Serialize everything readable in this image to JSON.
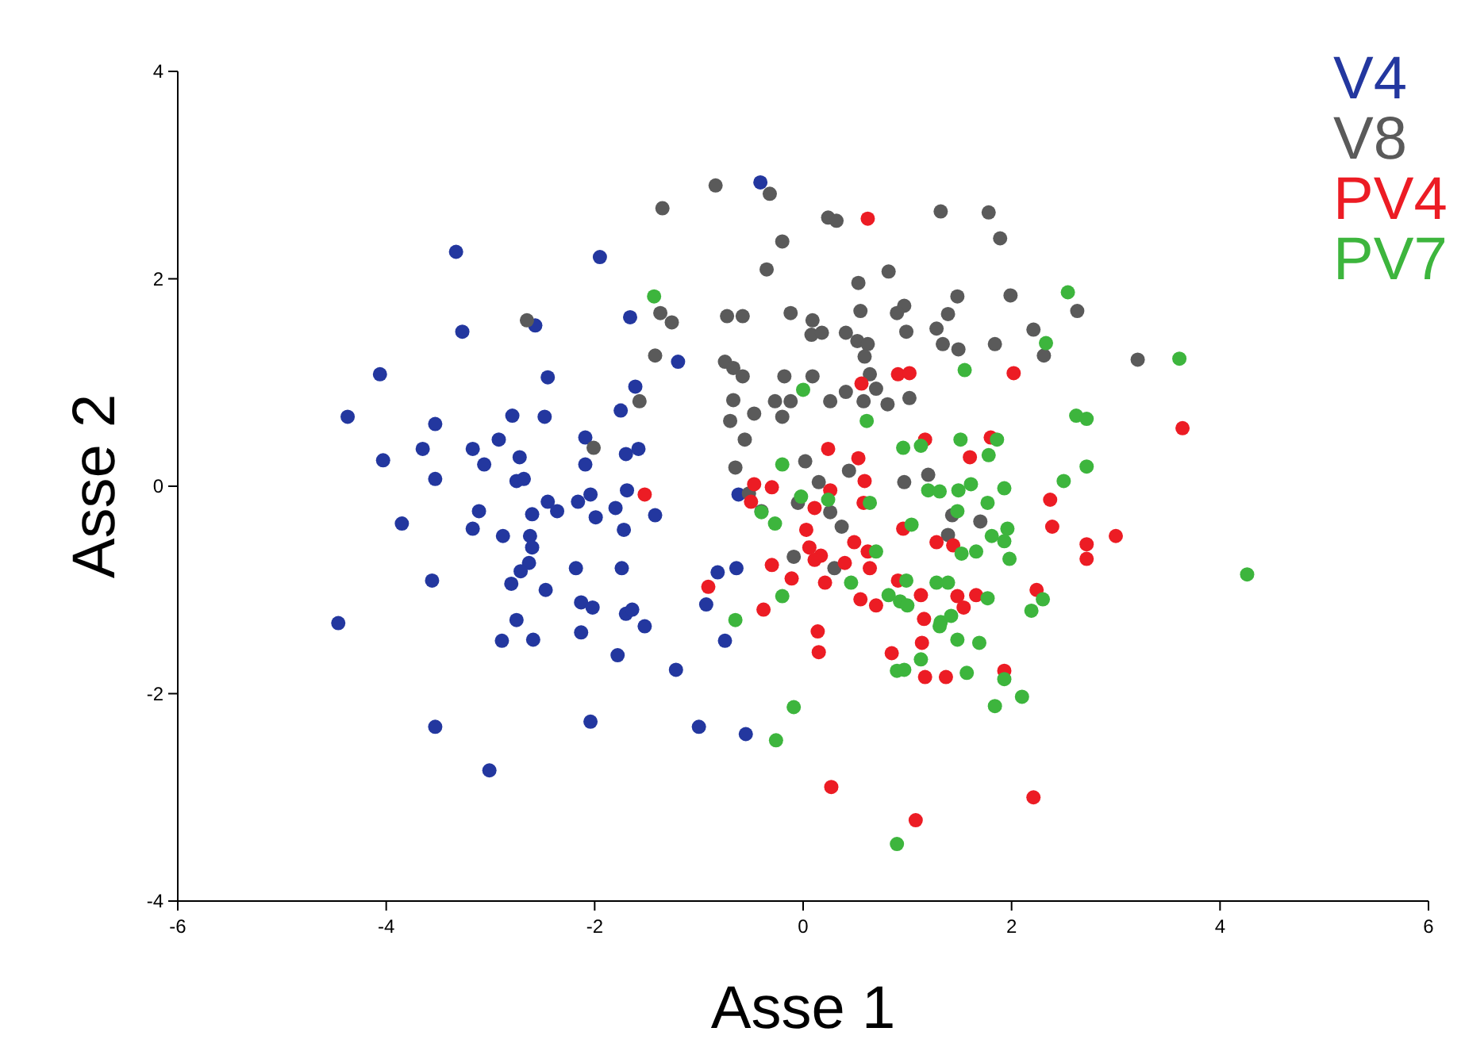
{
  "chart_data": {
    "type": "scatter",
    "xlabel": "Asse 1",
    "ylabel": "Asse 2",
    "xlim": [
      -6,
      6
    ],
    "ylim": [
      -4,
      4
    ],
    "xticks": [
      -6,
      -4,
      -2,
      0,
      2,
      4,
      6
    ],
    "yticks": [
      -4,
      -2,
      0,
      2,
      4
    ],
    "legend": "top right",
    "marker": "circle",
    "grid": false,
    "series": [
      {
        "name": "V4",
        "color": "#23379f",
        "x": [
          -3.33,
          -1.95,
          -3.27,
          -2.57,
          -1.66,
          -1.2,
          -4.06,
          -2.45,
          -1.61,
          -4.37,
          -3.53,
          -2.79,
          -2.48,
          -1.75,
          -2.09,
          -3.65,
          -3.17,
          -2.92,
          -4.03,
          -3.06,
          -2.72,
          -2.09,
          -1.7,
          -1.58,
          -3.53,
          -2.75,
          -2.68,
          -1.69,
          -2.45,
          -2.36,
          -2.16,
          -2.04,
          -1.8,
          -1.42,
          -1.99,
          -3.11,
          -2.6,
          -3.85,
          -3.17,
          -2.88,
          -1.72,
          -2.62,
          -2.6,
          -2.63,
          -2.71,
          -2.8,
          -2.47,
          -3.56,
          -2.18,
          -1.74,
          -2.13,
          -2.02,
          -1.7,
          -1.64,
          -1.52,
          -4.46,
          -2.75,
          -2.89,
          -2.59,
          -2.13,
          -1.78,
          -1.22,
          -3.53,
          -2.04,
          -1.0,
          -3.01,
          -0.93,
          -0.82,
          -0.64,
          -0.75,
          -0.55,
          -0.62,
          -0.41
        ],
        "values": [
          2.26,
          2.21,
          1.49,
          1.55,
          1.63,
          1.2,
          1.08,
          1.05,
          0.96,
          0.67,
          0.6,
          0.68,
          0.67,
          0.73,
          0.47,
          0.36,
          0.36,
          0.45,
          0.25,
          0.21,
          0.28,
          0.21,
          0.31,
          0.36,
          0.07,
          0.05,
          0.07,
          -0.04,
          -0.15,
          -0.24,
          -0.15,
          -0.08,
          -0.21,
          -0.28,
          -0.3,
          -0.24,
          -0.27,
          -0.36,
          -0.41,
          -0.48,
          -0.42,
          -0.48,
          -0.59,
          -0.74,
          -0.82,
          -0.94,
          -1.0,
          -0.91,
          -0.79,
          -0.79,
          -1.12,
          -1.17,
          -1.23,
          -1.19,
          -1.35,
          -1.32,
          -1.29,
          -1.49,
          -1.48,
          -1.41,
          -1.63,
          -1.77,
          -2.32,
          -2.27,
          -2.32,
          -2.74,
          -1.14,
          -0.83,
          -0.79,
          -1.49,
          -2.39,
          -0.08,
          2.93
        ]
      },
      {
        "name": "V8",
        "color": "#5a5a5a",
        "x": [
          -0.84,
          -1.35,
          -0.32,
          0.24,
          0.32,
          1.32,
          -0.2,
          -0.35,
          0.82,
          0.53,
          1.48,
          0.97,
          0.9,
          -0.12,
          0.55,
          -0.73,
          -0.58,
          1.39,
          0.09,
          1.28,
          0.99,
          0.08,
          0.18,
          0.41,
          0.52,
          0.62,
          1.34,
          1.49,
          -1.37,
          -1.26,
          -1.42,
          0.59,
          -0.75,
          -0.67,
          -0.58,
          -0.18,
          0.09,
          0.64,
          0.41,
          0.7,
          1.02,
          0.58,
          0.81,
          0.26,
          -0.27,
          -0.12,
          -0.67,
          -1.57,
          -0.47,
          -0.2,
          -0.7,
          -0.56,
          -0.65,
          0.02,
          0.44,
          0.15,
          0.97,
          1.2,
          -2.65,
          -2.01,
          1.78,
          1.89,
          1.99,
          2.63,
          2.21,
          1.84,
          2.31,
          3.21,
          -0.52,
          -0.05,
          0.26,
          -0.4,
          0.37,
          1.43,
          1.39,
          -0.09,
          0.3,
          1.7
        ],
        "values": [
          2.9,
          2.68,
          2.82,
          2.59,
          2.56,
          2.65,
          2.36,
          2.09,
          2.07,
          1.96,
          1.83,
          1.74,
          1.67,
          1.67,
          1.69,
          1.64,
          1.64,
          1.66,
          1.6,
          1.52,
          1.49,
          1.46,
          1.48,
          1.48,
          1.4,
          1.37,
          1.37,
          1.32,
          1.67,
          1.58,
          1.26,
          1.25,
          1.2,
          1.14,
          1.06,
          1.06,
          1.06,
          1.08,
          0.91,
          0.94,
          0.85,
          0.82,
          0.79,
          0.82,
          0.82,
          0.82,
          0.83,
          0.82,
          0.7,
          0.67,
          0.63,
          0.45,
          0.18,
          0.24,
          0.15,
          0.04,
          0.04,
          0.11,
          1.6,
          0.37,
          2.64,
          2.39,
          1.84,
          1.69,
          1.51,
          1.37,
          1.26,
          1.22,
          -0.07,
          -0.16,
          -0.25,
          -0.24,
          -0.39,
          -0.28,
          -0.47,
          -0.68,
          -0.79,
          -0.34
        ]
      },
      {
        "name": "PV4",
        "color": "#ec1c24",
        "x": [
          0.62,
          0.91,
          1.02,
          0.56,
          0.24,
          0.53,
          0.59,
          1.17,
          1.6,
          -1.52,
          -0.47,
          -0.3,
          0.26,
          -0.5,
          0.11,
          0.58,
          0.03,
          0.49,
          0.06,
          0.17,
          0.11,
          0.4,
          0.62,
          0.64,
          -0.3,
          -0.11,
          0.21,
          -0.91,
          -0.38,
          0.55,
          0.7,
          0.91,
          1.13,
          0.96,
          1.28,
          1.48,
          1.54,
          1.16,
          1.14,
          0.85,
          1.17,
          1.37,
          0.14,
          0.15,
          0.27,
          1.08,
          2.37,
          2.39,
          3.0,
          2.72,
          2.72,
          1.44,
          2.24,
          1.66,
          1.93,
          2.21,
          2.02,
          1.8,
          3.64
        ],
        "values": [
          2.58,
          1.08,
          1.09,
          0.99,
          0.36,
          0.27,
          0.05,
          0.45,
          0.28,
          -0.08,
          0.02,
          -0.01,
          -0.04,
          -0.15,
          -0.21,
          -0.16,
          -0.42,
          -0.54,
          -0.59,
          -0.67,
          -0.71,
          -0.74,
          -0.63,
          -0.79,
          -0.76,
          -0.89,
          -0.93,
          -0.97,
          -1.19,
          -1.09,
          -1.15,
          -0.91,
          -1.05,
          -0.41,
          -0.54,
          -1.06,
          -1.17,
          -1.28,
          -1.51,
          -1.61,
          -1.84,
          -1.84,
          -1.4,
          -1.6,
          -2.9,
          -3.22,
          -0.13,
          -0.39,
          -0.48,
          -0.56,
          -0.7,
          -0.57,
          -1.0,
          -1.05,
          -1.78,
          -3.0,
          1.09,
          0.47,
          0.56
        ]
      },
      {
        "name": "PV7",
        "color": "#3db53d",
        "x": [
          -1.43,
          1.55,
          0.0,
          0.61,
          0.96,
          1.13,
          1.51,
          -0.2,
          1.2,
          1.31,
          1.49,
          -0.02,
          0.24,
          0.64,
          -0.4,
          -0.27,
          1.04,
          1.52,
          0.7,
          0.46,
          0.99,
          1.28,
          1.39,
          0.82,
          0.93,
          1.0,
          1.32,
          1.42,
          1.31,
          1.48,
          1.69,
          -0.2,
          -0.65,
          1.13,
          0.9,
          0.97,
          1.57,
          -0.09,
          -0.26,
          0.9,
          1.78,
          2.72,
          2.5,
          1.61,
          1.93,
          1.77,
          1.48,
          1.96,
          1.81,
          1.93,
          1.66,
          1.98,
          1.77,
          2.3,
          2.19,
          1.93,
          2.1,
          1.84,
          4.26,
          2.54,
          2.33,
          3.61,
          2.62,
          2.72,
          1.86
        ],
        "values": [
          1.83,
          1.12,
          0.93,
          0.63,
          0.37,
          0.39,
          0.45,
          0.21,
          -0.04,
          -0.05,
          -0.04,
          -0.1,
          -0.13,
          -0.16,
          -0.25,
          -0.36,
          -0.37,
          -0.65,
          -0.63,
          -0.93,
          -0.91,
          -0.93,
          -0.93,
          -1.05,
          -1.11,
          -1.15,
          -1.31,
          -1.25,
          -1.35,
          -1.48,
          -1.51,
          -1.06,
          -1.29,
          -1.67,
          -1.78,
          -1.77,
          -1.8,
          -2.13,
          -2.45,
          -3.45,
          0.3,
          0.19,
          0.05,
          0.02,
          -0.02,
          -0.16,
          -0.24,
          -0.41,
          -0.48,
          -0.53,
          -0.63,
          -0.7,
          -1.08,
          -1.09,
          -1.2,
          -1.86,
          -2.03,
          -2.12,
          -0.85,
          1.87,
          1.38,
          1.23,
          0.68,
          0.65,
          0.45
        ]
      }
    ]
  }
}
